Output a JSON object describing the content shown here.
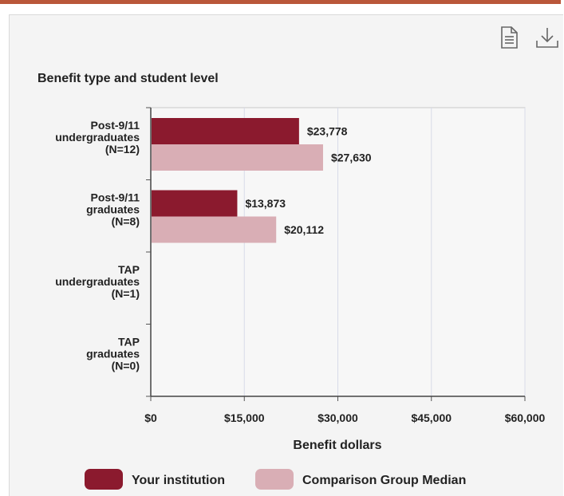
{
  "toolbar": {
    "table_icon": "document-icon",
    "download_icon": "download-icon"
  },
  "colors": {
    "accent_rule": "#b9573a",
    "your_institution": "#8b1a2e",
    "comparison": "#d9aeb5",
    "grid": "#d8dbe8"
  },
  "chart_data": {
    "type": "bar",
    "orientation": "horizontal",
    "title": "Benefit type and student level",
    "xlabel": "Benefit dollars",
    "ylabel": "",
    "xlim": [
      0,
      60000
    ],
    "xticks": [
      "$0",
      "$15,000",
      "$30,000",
      "$45,000",
      "$60,000"
    ],
    "xtick_values": [
      0,
      15000,
      30000,
      45000,
      60000
    ],
    "grid": true,
    "legend_position": "bottom",
    "categories": [
      [
        "Post-9/11",
        "undergraduates",
        "(N=12)"
      ],
      [
        "Post-9/11",
        "graduates",
        "(N=8)"
      ],
      [
        "TAP",
        "undergraduates",
        "(N=1)"
      ],
      [
        "TAP",
        "graduates",
        "(N=0)"
      ]
    ],
    "series": [
      {
        "name": "Your institution",
        "values": [
          23778,
          13873,
          null,
          null
        ],
        "labels": [
          "$23,778",
          "$13,873",
          "",
          ""
        ]
      },
      {
        "name": "Comparison Group Median",
        "values": [
          27630,
          20112,
          null,
          null
        ],
        "labels": [
          "$27,630",
          "$20,112",
          "",
          ""
        ]
      }
    ]
  }
}
